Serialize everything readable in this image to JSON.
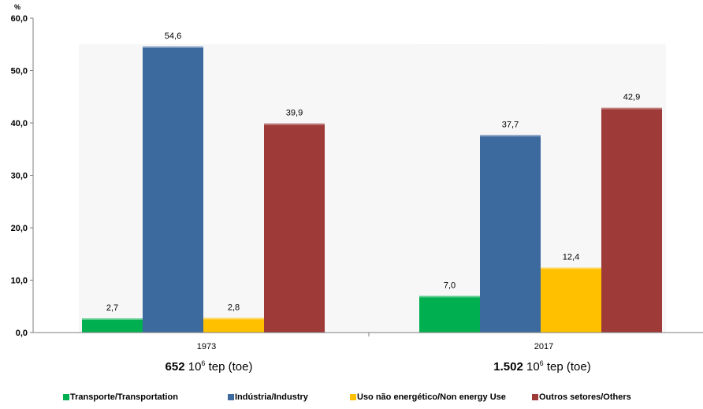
{
  "colors": {
    "transport": "#00b050",
    "industry": "#3d6a9e",
    "non_energy": "#ffc000",
    "others": "#9e3a38"
  },
  "chart_data": {
    "type": "bar",
    "ylabel": "%",
    "ylim": [
      0,
      60
    ],
    "yticks": [
      "0,0",
      "10,0",
      "20,0",
      "30,0",
      "40,0",
      "50,0",
      "60,0"
    ],
    "categories": [
      "1973",
      "2017"
    ],
    "series": [
      {
        "name": "Transporte/Transportation",
        "values": [
          2.7,
          7.0
        ],
        "labels": [
          "2,7",
          "7,0"
        ]
      },
      {
        "name": "Indústria/Industry",
        "values": [
          54.6,
          37.7
        ],
        "labels": [
          "54,6",
          "37,7"
        ]
      },
      {
        "name": "Uso não energético/Non energy Use",
        "values": [
          2.8,
          12.4
        ],
        "labels": [
          "2,8",
          "12,4"
        ]
      },
      {
        "name": "Outros setores/Others",
        "values": [
          39.9,
          42.9
        ],
        "labels": [
          "39,9",
          "42,9"
        ]
      }
    ],
    "grid": false,
    "legend": "bottom"
  },
  "totals": [
    {
      "value": "652",
      "unit_base": "10",
      "unit_exp": "6",
      "unit_text": " tep (toe)"
    },
    {
      "value": "1.502",
      "unit_base": "10",
      "unit_exp": "6",
      "unit_text": " tep (toe)"
    }
  ]
}
